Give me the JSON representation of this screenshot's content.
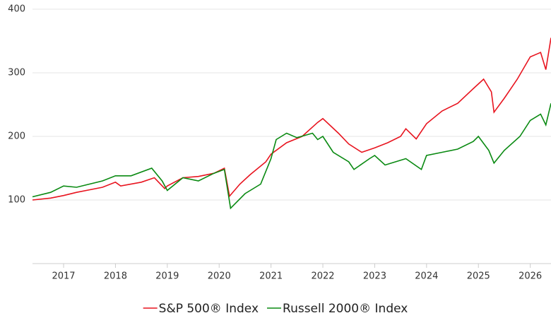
{
  "chart_data": {
    "type": "line",
    "xlim": [
      2016.4,
      2026.4
    ],
    "xticks": [
      2017,
      2018,
      2019,
      2020,
      2021,
      2022,
      2023,
      2024,
      2025,
      2026
    ],
    "ylim": [
      0,
      400
    ],
    "yticks": [
      100,
      200,
      300,
      400
    ],
    "grid": true,
    "legend": "bottom",
    "series": [
      {
        "name": "S&P 500® Index",
        "color": "#e8141f",
        "x": [
          2016.4,
          2016.75,
          2017.0,
          2017.25,
          2017.5,
          2017.75,
          2018.0,
          2018.1,
          2018.5,
          2018.75,
          2018.95,
          2019.0,
          2019.3,
          2019.6,
          2019.9,
          2020.1,
          2020.2,
          2020.4,
          2020.6,
          2020.9,
          2021.0,
          2021.3,
          2021.6,
          2021.9,
          2022.0,
          2022.3,
          2022.5,
          2022.75,
          2023.0,
          2023.25,
          2023.5,
          2023.6,
          2023.8,
          2024.0,
          2024.3,
          2024.6,
          2024.9,
          2025.1,
          2025.25,
          2025.3,
          2025.5,
          2025.75,
          2026.0,
          2026.2,
          2026.3,
          2026.4
        ],
        "values": [
          100,
          103,
          107,
          112,
          116,
          120,
          128,
          122,
          128,
          135,
          118,
          122,
          135,
          137,
          142,
          150,
          106,
          125,
          140,
          160,
          172,
          190,
          200,
          222,
          228,
          205,
          188,
          175,
          182,
          190,
          200,
          212,
          196,
          220,
          240,
          252,
          275,
          290,
          270,
          238,
          260,
          290,
          325,
          332,
          305,
          355
        ]
      },
      {
        "name": "Russell 2000® Index",
        "color": "#0a8a12",
        "x": [
          2016.4,
          2016.75,
          2017.0,
          2017.25,
          2017.5,
          2017.75,
          2018.0,
          2018.3,
          2018.7,
          2018.9,
          2019.0,
          2019.3,
          2019.6,
          2019.9,
          2020.1,
          2020.22,
          2020.5,
          2020.8,
          2021.0,
          2021.1,
          2021.3,
          2021.5,
          2021.8,
          2021.9,
          2022.0,
          2022.2,
          2022.5,
          2022.6,
          2022.9,
          2023.0,
          2023.2,
          2023.6,
          2023.9,
          2024.0,
          2024.3,
          2024.6,
          2024.9,
          2025.0,
          2025.2,
          2025.3,
          2025.5,
          2025.8,
          2026.0,
          2026.2,
          2026.3,
          2026.4
        ],
        "values": [
          105,
          112,
          122,
          120,
          125,
          130,
          138,
          138,
          150,
          130,
          115,
          135,
          130,
          142,
          148,
          87,
          110,
          125,
          165,
          195,
          205,
          198,
          205,
          195,
          200,
          175,
          160,
          148,
          165,
          170,
          155,
          165,
          148,
          170,
          175,
          180,
          192,
          200,
          178,
          158,
          178,
          200,
          225,
          235,
          218,
          252
        ]
      }
    ]
  }
}
